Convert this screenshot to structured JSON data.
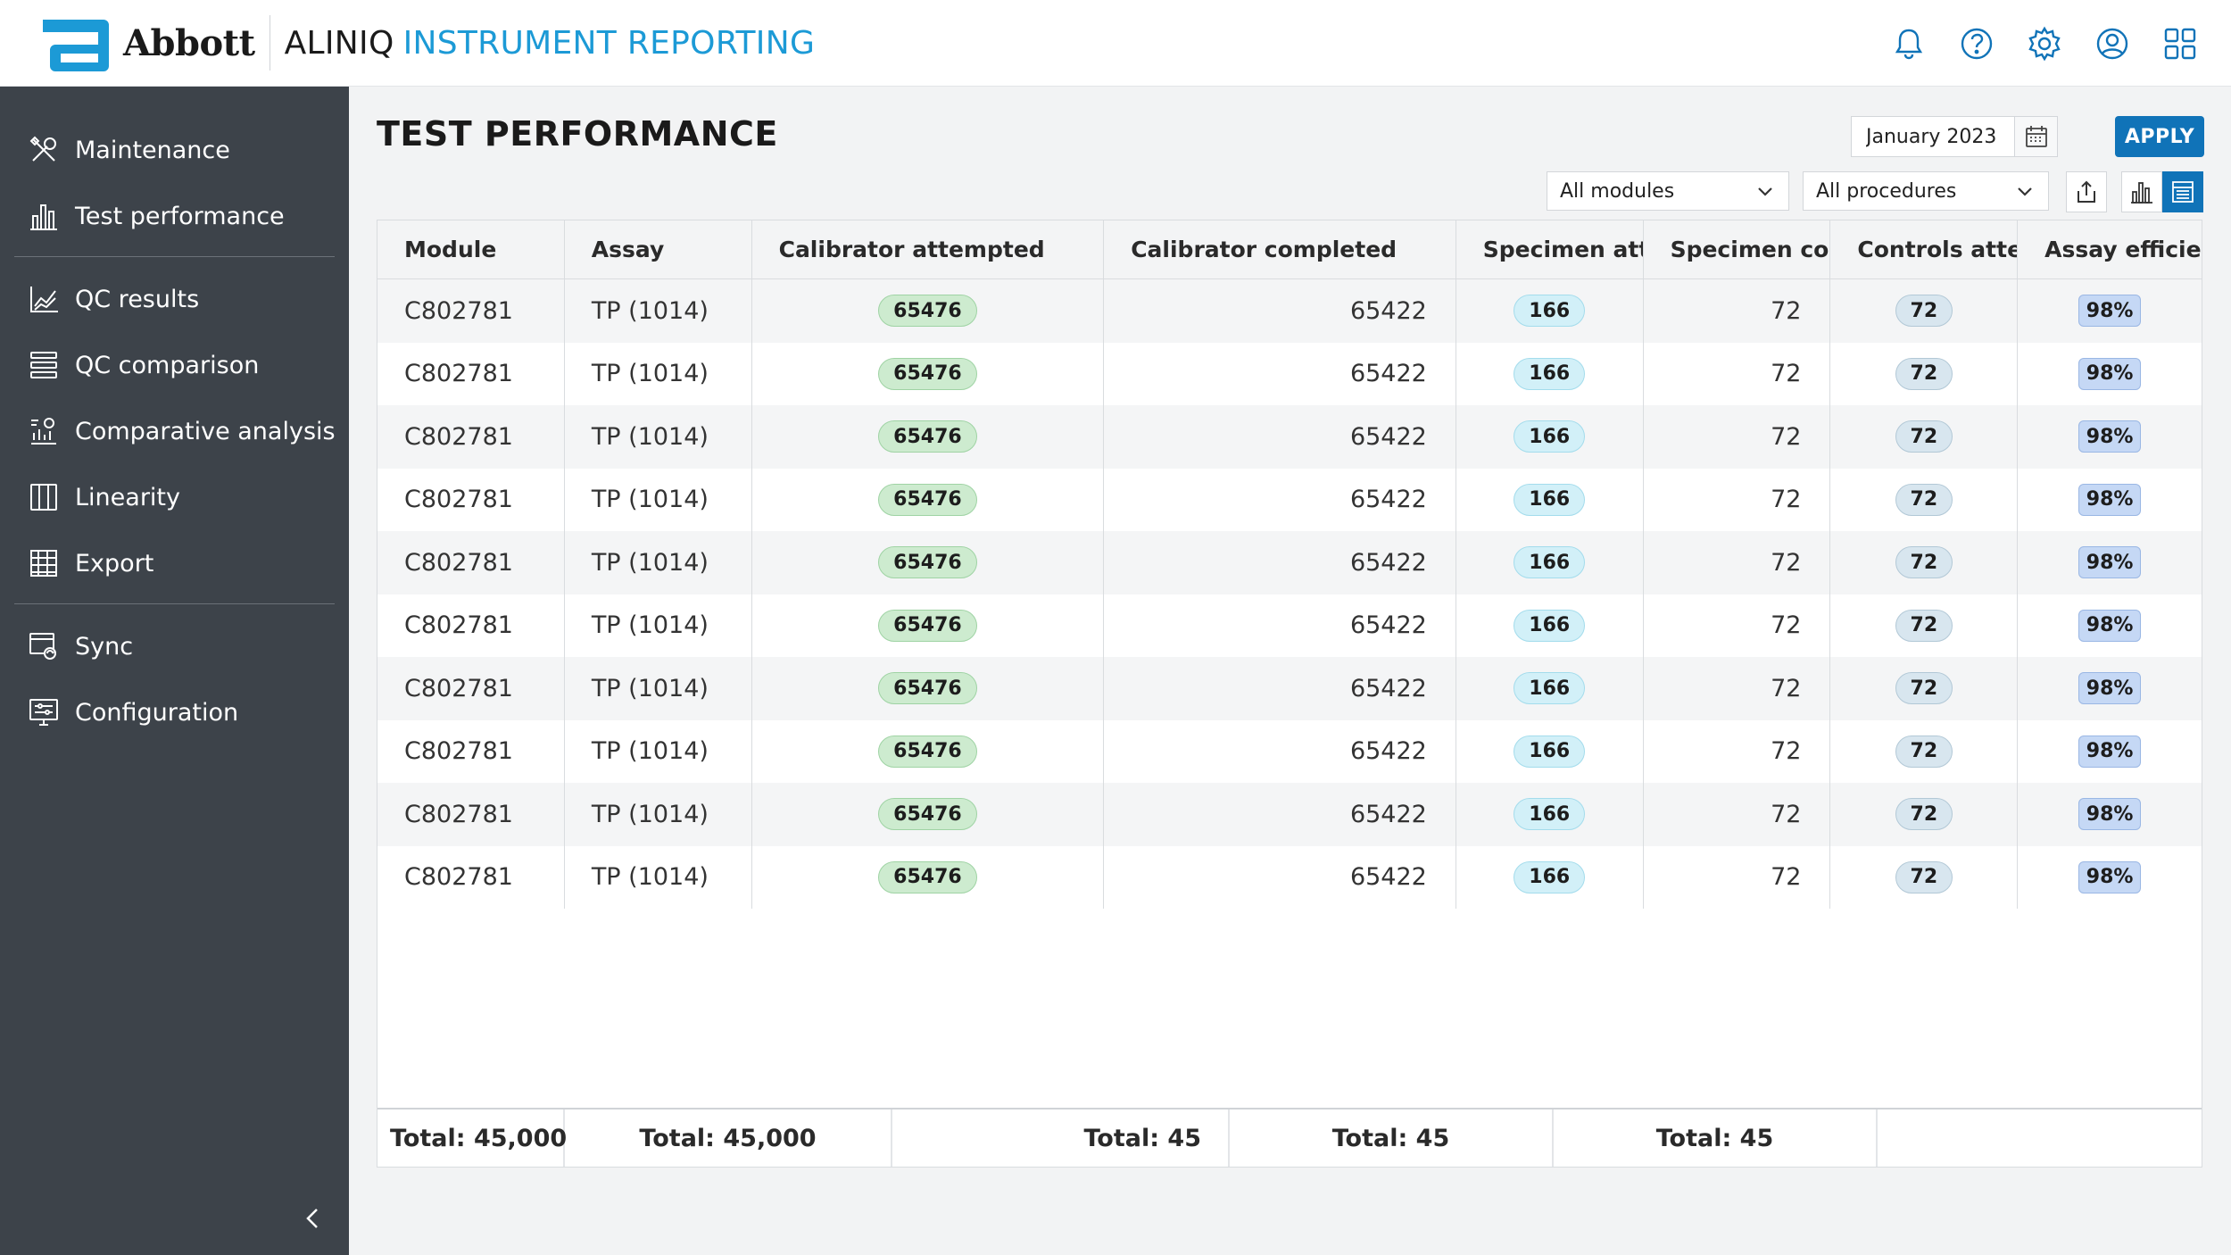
{
  "header": {
    "logo_text": "Abbott",
    "brand_primary": "ALINIQ",
    "brand_secondary": "INSTRUMENT REPORTING",
    "icons": [
      "bell-icon",
      "help-icon",
      "gear-icon",
      "user-icon",
      "apps-grid-icon"
    ]
  },
  "sidebar": {
    "items": [
      {
        "label": "Maintenance",
        "icon": "maintenance-icon"
      },
      {
        "label": "Test performance",
        "icon": "bar-chart-icon"
      },
      {
        "label": "QC results",
        "icon": "line-chart-icon"
      },
      {
        "label": "QC comparison",
        "icon": "stack-icon"
      },
      {
        "label": "Comparative analysis",
        "icon": "analysis-icon"
      },
      {
        "label": "Linearity",
        "icon": "columns-icon"
      },
      {
        "label": "Export",
        "icon": "export-grid-icon"
      },
      {
        "label": "Sync",
        "icon": "sync-icon"
      },
      {
        "label": "Configuration",
        "icon": "configuration-icon"
      }
    ]
  },
  "page": {
    "title": "TEST PERFORMANCE",
    "date_value": "January 2023",
    "apply_label": "APPLY",
    "module_filter": "All modules",
    "procedure_filter": "All procedures"
  },
  "table": {
    "columns": [
      "Module",
      "Assay",
      "Calibrator attempted",
      "Calibrator completed",
      "Specimen attempted",
      "Specimen completed",
      "Controls attempted",
      "Assay efficiency"
    ],
    "rows": [
      [
        "C802781",
        "TP (1014)",
        "65476",
        "65422",
        "166",
        "72",
        "72",
        "98%"
      ],
      [
        "C802781",
        "TP (1014)",
        "65476",
        "65422",
        "166",
        "72",
        "72",
        "98%"
      ],
      [
        "C802781",
        "TP (1014)",
        "65476",
        "65422",
        "166",
        "72",
        "72",
        "98%"
      ],
      [
        "C802781",
        "TP (1014)",
        "65476",
        "65422",
        "166",
        "72",
        "72",
        "98%"
      ],
      [
        "C802781",
        "TP (1014)",
        "65476",
        "65422",
        "166",
        "72",
        "72",
        "98%"
      ],
      [
        "C802781",
        "TP (1014)",
        "65476",
        "65422",
        "166",
        "72",
        "72",
        "98%"
      ],
      [
        "C802781",
        "TP (1014)",
        "65476",
        "65422",
        "166",
        "72",
        "72",
        "98%"
      ],
      [
        "C802781",
        "TP (1014)",
        "65476",
        "65422",
        "166",
        "72",
        "72",
        "98%"
      ],
      [
        "C802781",
        "TP (1014)",
        "65476",
        "65422",
        "166",
        "72",
        "72",
        "98%"
      ],
      [
        "C802781",
        "TP (1014)",
        "65476",
        "65422",
        "166",
        "72",
        "72",
        "98%"
      ]
    ],
    "totals": [
      "Total: 45,000",
      "Total: 45,000",
      "Total: 45",
      "Total: 45",
      "Total: 45"
    ]
  },
  "colors": {
    "accent": "#1073b8",
    "brand_blue": "#1c9ad6",
    "sidebar_bg": "#3d434a",
    "pill_green": "#cdebcf",
    "pill_cyan": "#d2f0f8",
    "pill_blue": "#c5d8f5"
  }
}
